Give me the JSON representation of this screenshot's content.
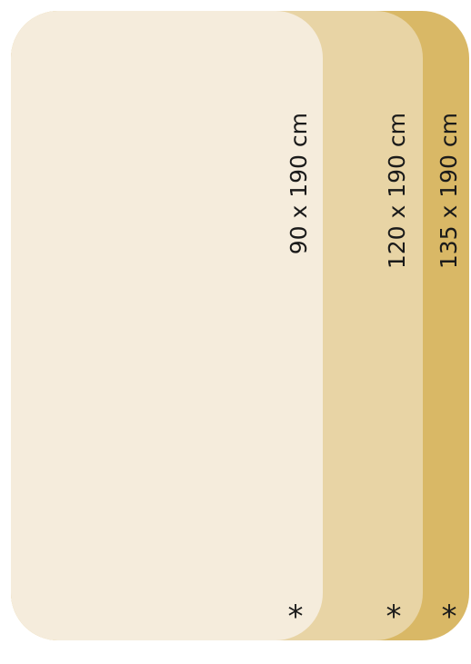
{
  "sizes": [
    {
      "label": "90 x 190 cm",
      "mark": "*"
    },
    {
      "label": "120 x 190 cm",
      "mark": "*"
    },
    {
      "label": "135 x 190 cm",
      "mark": "*"
    }
  ]
}
